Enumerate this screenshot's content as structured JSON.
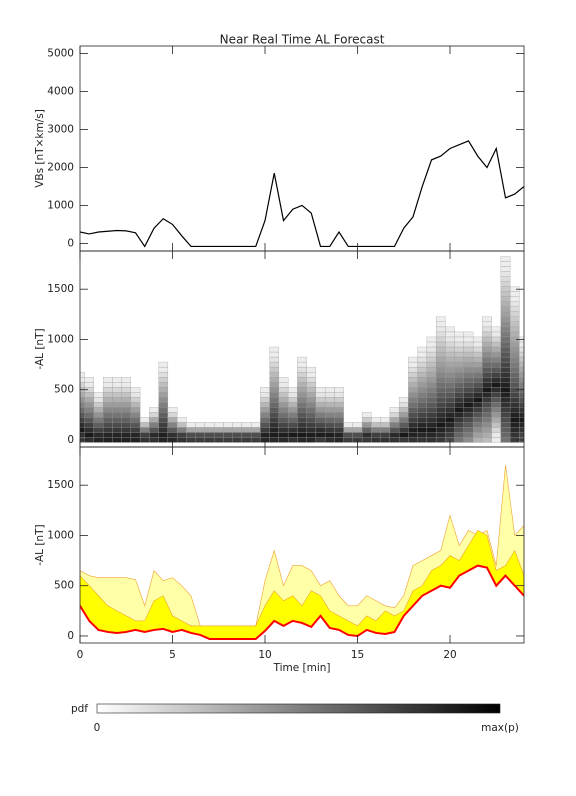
{
  "chart_data": [
    {
      "type": "line",
      "title": "Near Real Time AL Forecast",
      "ylabel": "VBs [nT×km/s]",
      "x": [
        0,
        0.5,
        1,
        1.5,
        2,
        2.5,
        3,
        3.5,
        4,
        4.5,
        5,
        5.5,
        6,
        6.5,
        7,
        7.5,
        8,
        8.5,
        9,
        9.5,
        10,
        10.5,
        11,
        11.5,
        12,
        12.5,
        13,
        13.5,
        14,
        14.5,
        15,
        15.5,
        16,
        16.5,
        17,
        17.5,
        18,
        18.5,
        19,
        19.5,
        20,
        20.5,
        21,
        21.5,
        22,
        22.5,
        23,
        23.5,
        24
      ],
      "series": [
        {
          "color": "#000000",
          "values": [
            300,
            250,
            300,
            320,
            340,
            330,
            280,
            -80,
            400,
            650,
            500,
            200,
            -80,
            -80,
            -80,
            -80,
            -80,
            -80,
            -80,
            -80,
            600,
            1850,
            600,
            900,
            1000,
            800,
            -80,
            -80,
            300,
            -80,
            -80,
            -80,
            -80,
            -80,
            -80,
            400,
            700,
            1500,
            2200,
            2300,
            2500,
            2600,
            2700,
            2300,
            2000,
            2500,
            1200,
            1300,
            1500
          ]
        }
      ],
      "xlim": [
        0,
        24
      ],
      "xticks": [
        0,
        5,
        10,
        15,
        20
      ],
      "ylim": [
        -200,
        5200
      ],
      "yticks": [
        0,
        1000,
        2000,
        3000,
        4000,
        5000
      ]
    },
    {
      "type": "heatmap",
      "ylabel": "-AL [nT]",
      "x": [
        0,
        0.5,
        1,
        1.5,
        2,
        2.5,
        3,
        3.5,
        4,
        4.5,
        5,
        5.5,
        6,
        6.5,
        7,
        7.5,
        8,
        8.5,
        9,
        9.5,
        10,
        10.5,
        11,
        11.5,
        12,
        12.5,
        13,
        13.5,
        14,
        14.5,
        15,
        15.5,
        16,
        16.5,
        17,
        17.5,
        18,
        18.5,
        19,
        19.5,
        20,
        20.5,
        21,
        21.5,
        22,
        22.5,
        23,
        23.5,
        24
      ],
      "values": [
        100,
        50,
        20,
        20,
        20,
        20,
        20,
        20,
        30,
        30,
        20,
        20,
        20,
        20,
        20,
        20,
        20,
        20,
        20,
        20,
        30,
        60,
        40,
        50,
        50,
        40,
        60,
        40,
        30,
        20,
        20,
        30,
        20,
        20,
        30,
        50,
        80,
        100,
        100,
        150,
        200,
        300,
        350,
        400,
        500,
        550,
        500,
        200,
        200
      ],
      "upper": [
        650,
        600,
        450,
        600,
        600,
        600,
        500,
        200,
        300,
        750,
        300,
        200,
        150,
        150,
        150,
        150,
        150,
        150,
        150,
        150,
        500,
        900,
        600,
        500,
        800,
        700,
        500,
        500,
        500,
        150,
        150,
        250,
        200,
        200,
        300,
        400,
        800,
        900,
        1000,
        1200,
        1100,
        1050,
        1050,
        1000,
        1200,
        1100,
        1800,
        1500,
        1000
      ],
      "xlim": [
        0,
        24
      ],
      "xticks": [
        0,
        5,
        10,
        15,
        20
      ],
      "ylim": [
        -70,
        1880
      ],
      "yticks": [
        0,
        500,
        1000,
        1500
      ]
    },
    {
      "type": "band",
      "ylabel": "-AL [nT]",
      "xlabel": "Time [min]",
      "x": [
        0,
        0.5,
        1,
        1.5,
        2,
        2.5,
        3,
        3.5,
        4,
        4.5,
        5,
        5.5,
        6,
        6.5,
        7,
        7.5,
        8,
        8.5,
        9,
        9.5,
        10,
        10.5,
        11,
        11.5,
        12,
        12.5,
        13,
        13.5,
        14,
        14.5,
        15,
        15.5,
        16,
        16.5,
        17,
        17.5,
        18,
        18.5,
        19,
        19.5,
        20,
        20.5,
        21,
        21.5,
        22,
        22.5,
        23,
        23.5,
        24
      ],
      "series": [
        {
          "color": "#ffffa8",
          "values": [
            650,
            600,
            580,
            580,
            580,
            580,
            560,
            300,
            650,
            550,
            580,
            500,
            400,
            100,
            100,
            100,
            100,
            100,
            100,
            100,
            550,
            850,
            500,
            700,
            700,
            650,
            500,
            550,
            400,
            300,
            300,
            400,
            350,
            300,
            280,
            400,
            700,
            750,
            800,
            850,
            1200,
            900,
            1050,
            1000,
            1050,
            700,
            1700,
            1000,
            1100
          ]
        },
        {
          "color": "#ffff00",
          "values": [
            600,
            500,
            400,
            300,
            250,
            200,
            150,
            150,
            350,
            400,
            200,
            150,
            100,
            100,
            100,
            100,
            100,
            100,
            100,
            100,
            300,
            450,
            350,
            400,
            300,
            450,
            400,
            250,
            200,
            150,
            100,
            200,
            150,
            250,
            200,
            250,
            450,
            500,
            650,
            700,
            800,
            750,
            900,
            1050,
            1000,
            650,
            700,
            850,
            600
          ]
        },
        {
          "color": "#ff0000",
          "values": [
            300,
            150,
            60,
            40,
            30,
            40,
            60,
            40,
            60,
            70,
            40,
            60,
            30,
            10,
            -30,
            -30,
            -30,
            -30,
            -30,
            -30,
            50,
            150,
            100,
            150,
            130,
            90,
            200,
            80,
            60,
            10,
            0,
            60,
            30,
            20,
            40,
            200,
            300,
            400,
            450,
            500,
            480,
            600,
            650,
            700,
            680,
            500,
            600,
            500,
            400
          ]
        }
      ],
      "outline_color": "#f0a030",
      "xlim": [
        0,
        24
      ],
      "xticks": [
        0,
        5,
        10,
        15,
        20
      ],
      "ylim": [
        -70,
        1880
      ],
      "yticks": [
        0,
        500,
        1000,
        1500
      ]
    }
  ],
  "colorbar": {
    "label": "pdf",
    "min_label": "0",
    "max_label": "max(p)"
  }
}
